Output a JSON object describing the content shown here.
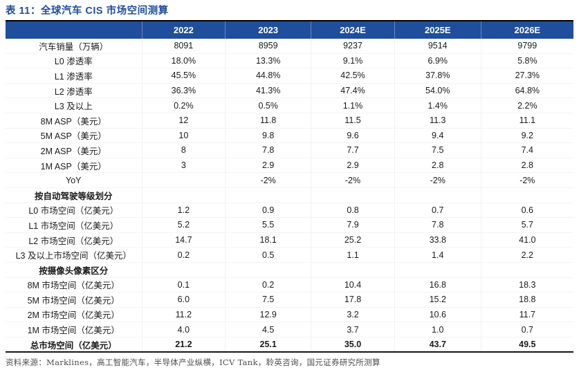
{
  "title": "表 11：全球汽车 CIS 市场空间测算",
  "colors": {
    "accent_blue": "#1f4e9c",
    "header_text": "#ffffff",
    "rule_black": "#000000",
    "footer_gray": "#4d4d4d"
  },
  "table": {
    "columns": [
      "",
      "2022",
      "2023",
      "2024E",
      "2025E",
      "2026E"
    ],
    "rows": [
      {
        "label": "汽车销量（万辆）",
        "style": "normal",
        "values": [
          "8091",
          "8959",
          "9237",
          "9514",
          "9799"
        ]
      },
      {
        "label": "L0 渗透率",
        "style": "normal",
        "values": [
          "18.0%",
          "13.3%",
          "9.1%",
          "6.9%",
          "5.8%"
        ]
      },
      {
        "label": "L1 渗透率",
        "style": "normal",
        "values": [
          "45.5%",
          "44.8%",
          "42.5%",
          "37.8%",
          "27.3%"
        ]
      },
      {
        "label": "L2 渗透率",
        "style": "normal",
        "values": [
          "36.3%",
          "41.3%",
          "47.4%",
          "54.0%",
          "64.8%"
        ]
      },
      {
        "label": "L3 及以上",
        "style": "normal",
        "values": [
          "0.2%",
          "0.5%",
          "1.1%",
          "1.4%",
          "2.2%"
        ]
      },
      {
        "label": "8M ASP（美元）",
        "style": "normal",
        "values": [
          "12",
          "11.8",
          "11.5",
          "11.3",
          "11.1"
        ]
      },
      {
        "label": "5M ASP（美元）",
        "style": "normal",
        "values": [
          "10",
          "9.8",
          "9.6",
          "9.4",
          "9.2"
        ]
      },
      {
        "label": "2M ASP（美元）",
        "style": "normal",
        "values": [
          "8",
          "7.8",
          "7.7",
          "7.5",
          "7.4"
        ]
      },
      {
        "label": "1M ASP（美元）",
        "style": "normal",
        "values": [
          "3",
          "2.9",
          "2.9",
          "2.8",
          "2.8"
        ]
      },
      {
        "label": "YoY",
        "style": "normal",
        "values": [
          "",
          "-2%",
          "-2%",
          "-2%",
          "-2%"
        ]
      },
      {
        "label": "按自动驾驶等级划分",
        "style": "section",
        "values": [
          "",
          "",
          "",
          "",
          ""
        ]
      },
      {
        "label": "L0 市场空间（亿美元）",
        "style": "normal",
        "values": [
          "1.2",
          "0.9",
          "0.8",
          "0.7",
          "0.6"
        ]
      },
      {
        "label": "L1 市场空间（亿美元）",
        "style": "normal",
        "values": [
          "5.2",
          "5.5",
          "7.9",
          "7.8",
          "5.7"
        ]
      },
      {
        "label": "L2 市场空间（亿美元）",
        "style": "normal",
        "values": [
          "14.7",
          "18.1",
          "25.2",
          "33.8",
          "41.0"
        ]
      },
      {
        "label": "L3 及以上市场空间（亿美元）",
        "style": "normal",
        "values": [
          "0.2",
          "0.5",
          "1.1",
          "1.4",
          "2.2"
        ]
      },
      {
        "label": "按摄像头像素区分",
        "style": "section",
        "values": [
          "",
          "",
          "",
          "",
          ""
        ]
      },
      {
        "label": "8M 市场空间（亿美元）",
        "style": "normal",
        "values": [
          "0.1",
          "0.2",
          "10.4",
          "16.8",
          "18.3"
        ]
      },
      {
        "label": "5M 市场空间（亿美元）",
        "style": "normal",
        "values": [
          "6.0",
          "7.5",
          "17.8",
          "15.2",
          "18.8"
        ]
      },
      {
        "label": "2M 市场空间（亿美元）",
        "style": "normal",
        "values": [
          "11.2",
          "12.9",
          "3.2",
          "10.6",
          "11.7"
        ]
      },
      {
        "label": "1M 市场空间（亿美元）",
        "style": "normal",
        "values": [
          "4.0",
          "4.5",
          "3.7",
          "1.0",
          "0.7"
        ]
      },
      {
        "label": "总市场空间（亿美元）",
        "style": "total",
        "values": [
          "21.2",
          "25.1",
          "35.0",
          "43.7",
          "49.5"
        ]
      }
    ]
  },
  "footer": "资料来源：Marklines，高工智能汽车，半导体产业纵横，ICV Tank，聆英咨询，国元证券研究所测算"
}
